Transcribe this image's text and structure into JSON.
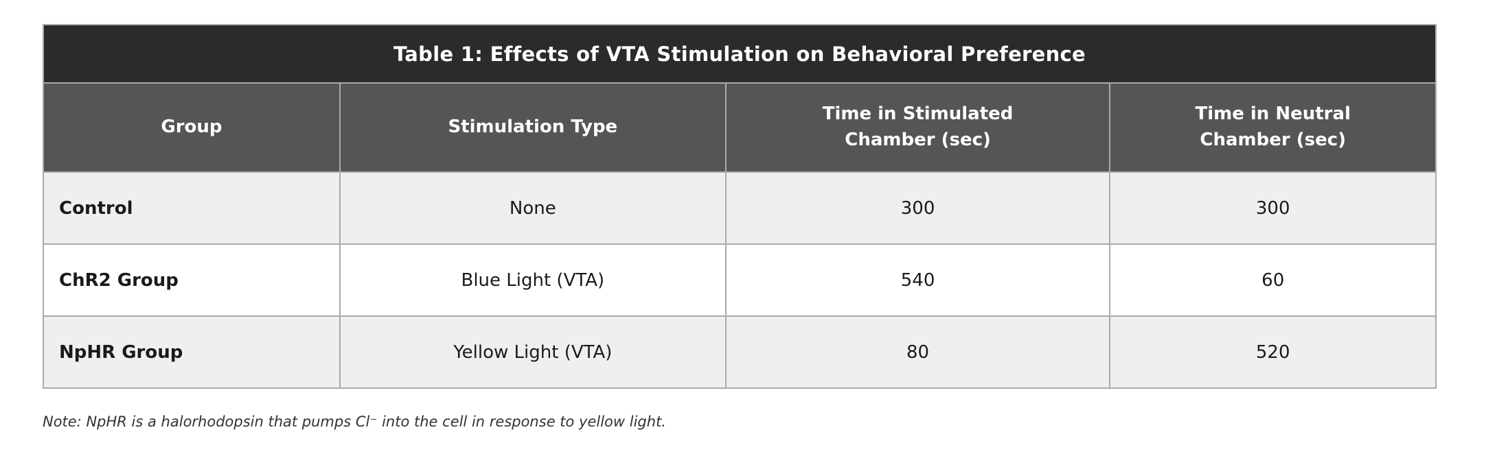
{
  "table": {
    "title": "Table 1: Effects of VTA Stimulation on Behavioral Preference",
    "columns": [
      "Group",
      "Stimulation Type",
      "Time in Stimulated\nChamber (sec)",
      "Time in Neutral\nChamber (sec)"
    ],
    "rows": [
      {
        "group": "Control",
        "stimulation_type": "None",
        "time_stimulated": "300",
        "time_neutral": "300"
      },
      {
        "group": "ChR2 Group",
        "stimulation_type": "Blue Light (VTA)",
        "time_stimulated": "540",
        "time_neutral": "60"
      },
      {
        "group": "NpHR Group",
        "stimulation_type": "Yellow Light (VTA)",
        "time_stimulated": "80",
        "time_neutral": "520"
      }
    ],
    "note": "Note: NpHR is a halorhodopsin that pumps Cl⁻ into the cell in response to yellow light."
  },
  "chart_data": {
    "type": "table",
    "title": "Table 1: Effects of VTA Stimulation on Behavioral Preference",
    "columns": [
      "Group",
      "Stimulation Type",
      "Time in Stimulated Chamber (sec)",
      "Time in Neutral Chamber (sec)"
    ],
    "rows": [
      [
        "Control",
        "None",
        300,
        300
      ],
      [
        "ChR2 Group",
        "Blue Light (VTA)",
        540,
        60
      ],
      [
        "NpHR Group",
        "Yellow Light (VTA)",
        80,
        520
      ]
    ],
    "note": "Note: NpHR is a halorhodopsin that pumps Cl⁻ into the cell in response to yellow light."
  },
  "colors": {
    "title_bar_bg": "#2b2b2b",
    "header_bg": "#555555",
    "row_stripe_bg": "#efefef",
    "row_plain_bg": "#ffffff",
    "border": "#aaaaaa",
    "outer_border": "#999999",
    "header_text": "#ffffff",
    "cell_text": "#1a1a1a",
    "note_text": "#333333"
  }
}
